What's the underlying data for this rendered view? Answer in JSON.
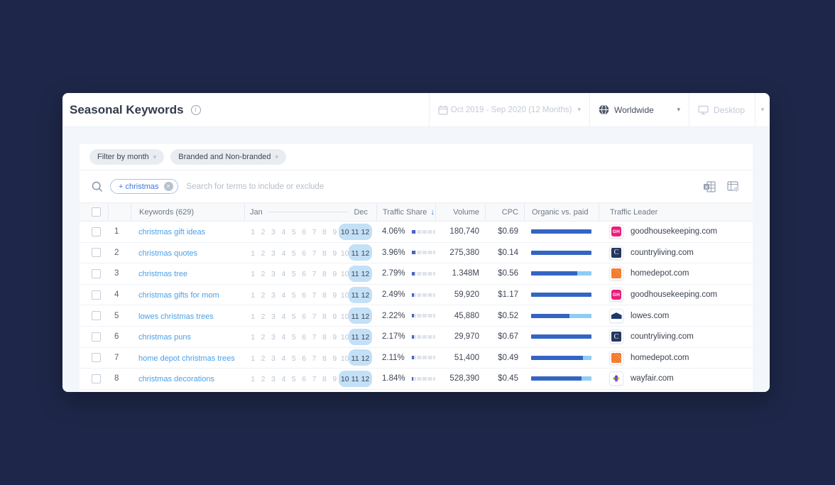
{
  "header": {
    "title": "Seasonal Keywords",
    "date_range": "Oct 2019 - Sep 2020 (12 Months)",
    "region": "Worldwide",
    "device": "Desktop"
  },
  "filters": {
    "month": "Filter by month",
    "branded": "Branded and Non-branded"
  },
  "search": {
    "chip": "+ christmas",
    "placeholder": "Search for terms to include or exclude"
  },
  "table": {
    "header": {
      "keywords": "Keywords (629)",
      "month_first": "Jan",
      "month_last": "Dec",
      "traffic_share": "Traffic Share",
      "volume": "Volume",
      "cpc": "CPC",
      "organic": "Organic vs. paid",
      "leader": "Traffic Leader"
    },
    "rows": [
      {
        "rank": "1",
        "keyword": "christmas gift ideas",
        "months_highlighted": [
          10,
          11,
          12
        ],
        "traffic_share": "4.06%",
        "share_pct": 4.06,
        "volume": "180,740",
        "cpc": "$0.69",
        "organic_pct": 100,
        "leader": "goodhousekeeping.com",
        "leader_icon": "goodhousekeeping"
      },
      {
        "rank": "2",
        "keyword": "christmas quotes",
        "months_highlighted": [
          11,
          12
        ],
        "traffic_share": "3.96%",
        "share_pct": 3.96,
        "volume": "275,380",
        "cpc": "$0.14",
        "organic_pct": 100,
        "leader": "countryliving.com",
        "leader_icon": "countryliving"
      },
      {
        "rank": "3",
        "keyword": "christmas tree",
        "months_highlighted": [
          11,
          12
        ],
        "traffic_share": "2.79%",
        "share_pct": 2.79,
        "volume": "1.348M",
        "cpc": "$0.56",
        "organic_pct": 76,
        "leader": "homedepot.com",
        "leader_icon": "homedepot"
      },
      {
        "rank": "4",
        "keyword": "christmas gifts for mom",
        "months_highlighted": [
          11,
          12
        ],
        "traffic_share": "2.49%",
        "share_pct": 2.49,
        "volume": "59,920",
        "cpc": "$1.17",
        "organic_pct": 100,
        "leader": "goodhousekeeping.com",
        "leader_icon": "goodhousekeeping"
      },
      {
        "rank": "5",
        "keyword": "lowes christmas trees",
        "months_highlighted": [
          11,
          12
        ],
        "traffic_share": "2.22%",
        "share_pct": 2.22,
        "volume": "45,880",
        "cpc": "$0.52",
        "organic_pct": 64,
        "leader": "lowes.com",
        "leader_icon": "lowes"
      },
      {
        "rank": "6",
        "keyword": "christmas puns",
        "months_highlighted": [
          11,
          12
        ],
        "traffic_share": "2.17%",
        "share_pct": 2.17,
        "volume": "29,970",
        "cpc": "$0.67",
        "organic_pct": 100,
        "leader": "countryliving.com",
        "leader_icon": "countryliving"
      },
      {
        "rank": "7",
        "keyword": "home depot christmas trees",
        "months_highlighted": [
          11,
          12
        ],
        "traffic_share": "2.11%",
        "share_pct": 2.11,
        "volume": "51,400",
        "cpc": "$0.49",
        "organic_pct": 86,
        "leader": "homedepot.com",
        "leader_icon": "homedepot"
      },
      {
        "rank": "8",
        "keyword": "christmas decorations",
        "months_highlighted": [
          10,
          11,
          12
        ],
        "traffic_share": "1.84%",
        "share_pct": 1.84,
        "volume": "528,390",
        "cpc": "$0.45",
        "organic_pct": 84,
        "leader": "wayfair.com",
        "leader_icon": "wayfair"
      }
    ]
  },
  "favicons": {
    "goodhousekeeping": {
      "bg": "#ea1e7c",
      "text": "GH"
    },
    "countryliving": {
      "bg": "#24375f",
      "text": "C"
    },
    "homedepot": {
      "bg": "#f46a13",
      "text": ""
    },
    "lowes": {
      "bg": "#1d3a6d",
      "text": ""
    },
    "wayfair": {
      "bg": "#8b3fc6",
      "text": ""
    }
  },
  "colors": {
    "organic": "#3465c3",
    "paid": "#8ecdf6",
    "month_pill": "#c3e0f7",
    "keyword_link": "#4aa0e8"
  }
}
